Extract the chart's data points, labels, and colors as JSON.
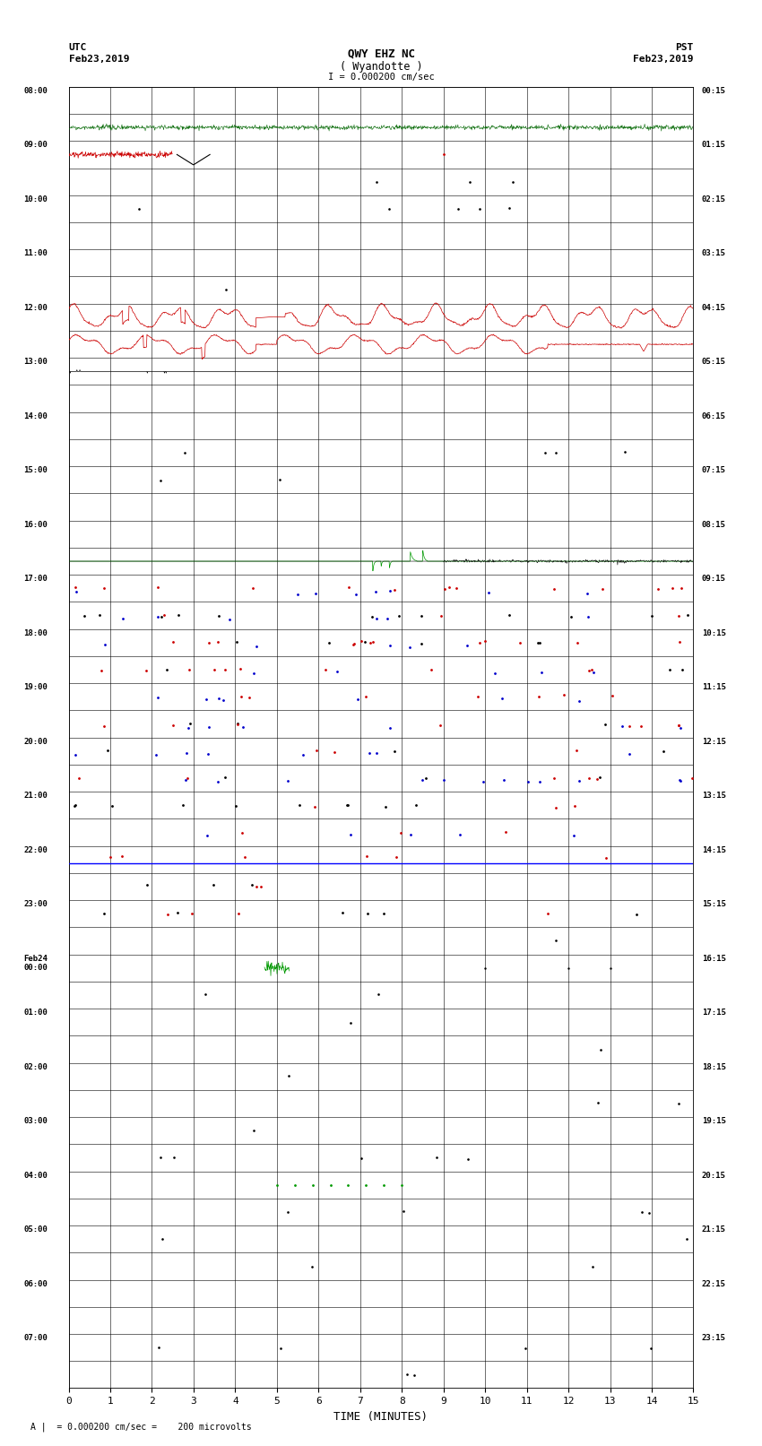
{
  "title_line1": "QWY EHZ NC",
  "title_line2": "( Wyandotte )",
  "scale_label": "I = 0.000200 cm/sec",
  "utc_label": "UTC",
  "utc_date": "Feb23,2019",
  "pst_label": "PST",
  "pst_date": "Feb23,2019",
  "xlabel": "TIME (MINUTES)",
  "footnote": "A |  = 0.000200 cm/sec =    200 microvolts",
  "xlim": [
    0,
    15
  ],
  "xticks": [
    0,
    1,
    2,
    3,
    4,
    5,
    6,
    7,
    8,
    9,
    10,
    11,
    12,
    13,
    14,
    15
  ],
  "num_rows": 48,
  "background_color": "#ffffff",
  "utc_times_str": [
    "08:00",
    "09:00",
    "10:00",
    "11:00",
    "12:00",
    "13:00",
    "14:00",
    "15:00",
    "16:00",
    "17:00",
    "18:00",
    "19:00",
    "20:00",
    "21:00",
    "22:00",
    "23:00",
    "Feb24\n00:00",
    "01:00",
    "02:00",
    "03:00",
    "04:00",
    "05:00",
    "06:00",
    "07:00"
  ],
  "pst_times_str": [
    "00:15",
    "01:15",
    "02:15",
    "03:15",
    "04:15",
    "05:15",
    "06:15",
    "07:15",
    "08:15",
    "09:15",
    "10:15",
    "11:15",
    "12:15",
    "13:15",
    "14:15",
    "15:15",
    "16:15",
    "17:15",
    "18:15",
    "19:15",
    "20:15",
    "21:15",
    "22:15",
    "23:15"
  ],
  "figure_width": 8.5,
  "figure_height": 16.13
}
